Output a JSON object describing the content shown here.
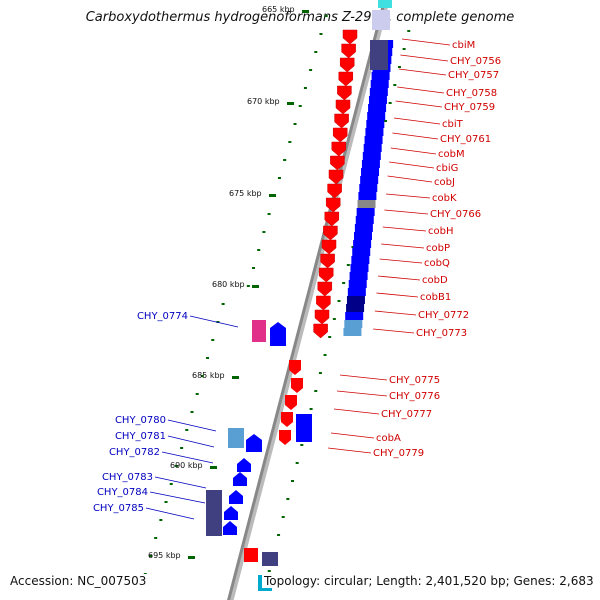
{
  "title": "Carboxydothermus hydrogenoformans Z-2901, complete genome",
  "accession_text": "Accession: NC_007503",
  "topology_text": "Topology: circular; Length: 2,401,520 bp; Genes: 2,683",
  "ticks": [
    {
      "label": "665 kbp"
    },
    {
      "label": "670 kbp"
    },
    {
      "label": "675 kbp"
    },
    {
      "label": "680 kbp"
    },
    {
      "label": "685 kbp"
    },
    {
      "label": "690 kbp"
    },
    {
      "label": "695 kbp"
    }
  ],
  "right_labels": [
    "cbiM",
    "CHY_0756",
    "CHY_0757",
    "CHY_0758",
    "CHY_0759",
    "cbiT",
    "CHY_0761",
    "cobM",
    "cbiG",
    "cobJ",
    "cobK",
    "CHY_0766",
    "cobH",
    "cobP",
    "cobQ",
    "cobD",
    "cobB1",
    "CHY_0772",
    "CHY_0773"
  ],
  "right_labels_lower": [
    "CHY_0775",
    "CHY_0776",
    "CHY_0777",
    "cobA",
    "CHY_0779"
  ],
  "left_labels": [
    "CHY_0774",
    "CHY_0780",
    "CHY_0781",
    "CHY_0782",
    "CHY_0783",
    "CHY_0784",
    "CHY_0785"
  ],
  "colors": {
    "forward_gene": "#ff0000",
    "reverse_gene": "#0000ff",
    "backbone": "#888888",
    "tick": "#006400",
    "label_red": "#d00000",
    "label_blue": "#0000c0",
    "cog_dark": "#404080",
    "cog_light": "#5a9fd4",
    "cog_magenta": "#e0308a"
  }
}
